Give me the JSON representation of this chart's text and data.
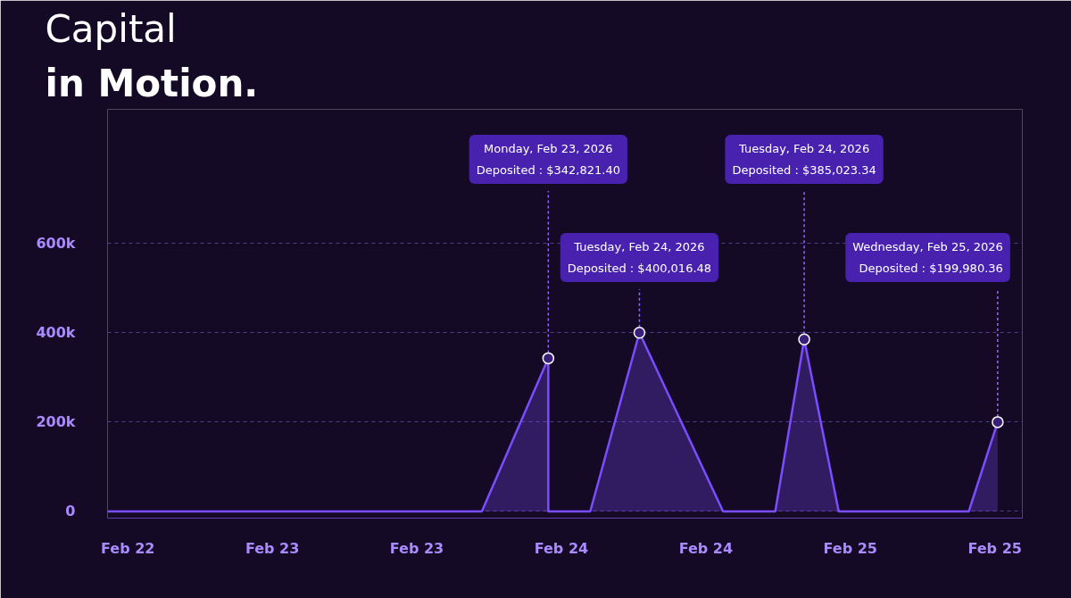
{
  "chart_data": {
    "type": "area",
    "title": "Capital",
    "subtitle": "in Motion.",
    "x": [
      "2026-02-22T10:19",
      "2026-02-23T17:24",
      "2026-02-23T22:55",
      "2026-02-23T22:55",
      "2026-02-24T02:24",
      "2026-02-24T06:29",
      "2026-02-24T13:26",
      "2026-02-24T17:46",
      "2026-02-24T20:10",
      "2026-02-24T23:02",
      "2026-02-25T09:50",
      "2026-02-25T12:14"
    ],
    "series": [
      {
        "color": "#7c4dff",
        "values": [
          0,
          0,
          342821.4,
          0,
          0,
          400016.48,
          0,
          0,
          385023.34,
          0,
          0,
          199980.36
        ]
      }
    ],
    "xlim": [
      "2026-02-22T10:19",
      "2026-02-25T14:17"
    ],
    "xticks": [
      {
        "value": "2026-02-22T12:00",
        "label": "Feb 22"
      },
      {
        "value": "2026-02-23T00:00",
        "label": "Feb 23"
      },
      {
        "value": "2026-02-23T12:00",
        "label": "Feb 23"
      },
      {
        "value": "2026-02-24T00:00",
        "label": "Feb 24"
      },
      {
        "value": "2026-02-24T12:00",
        "label": "Feb 24"
      },
      {
        "value": "2026-02-25T00:00",
        "label": "Feb 25"
      },
      {
        "value": "2026-02-25T12:00",
        "label": "Feb 25"
      }
    ],
    "ylim": [
      -15000,
      900000
    ],
    "yticks": [
      {
        "value": 0,
        "label": "0"
      },
      {
        "value": 200000,
        "label": "200k"
      },
      {
        "value": 400000,
        "label": "400k"
      },
      {
        "value": 600000,
        "label": "600k"
      }
    ],
    "grid": "y",
    "marker": "none",
    "line_style": "solid",
    "annotations": [
      {
        "text": "Monday, Feb 23, 2026\nDeposited : $342,821.40",
        "x": "2026-02-23T22:55",
        "y": 342821.4
      },
      {
        "text": "Tuesday, Feb 24, 2026\nDeposited : $400,016.48",
        "x": "2026-02-24T06:29",
        "y": 400016.48
      },
      {
        "text": "Tuesday, Feb 24, 2026\nDeposited : $385,023.34",
        "x": "2026-02-24T20:10",
        "y": 385023.34
      },
      {
        "text": "Wednesday, Feb 25, 2026\nDeposited : $199,980.36",
        "x": "2026-02-25T12:14",
        "y": 199980.36
      }
    ]
  }
}
